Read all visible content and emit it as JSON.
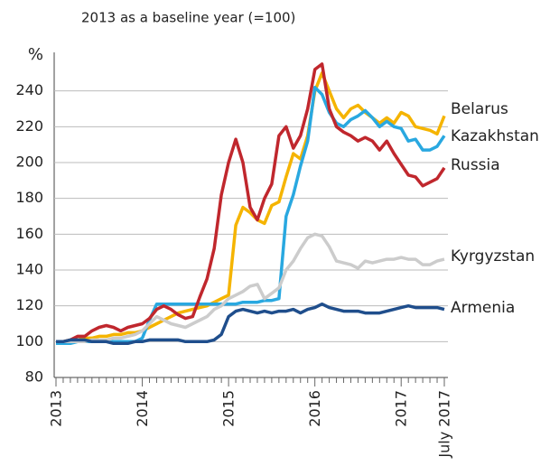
{
  "chart_data": {
    "type": "line",
    "subtitle": "2013 as a baseline year (=100)",
    "y_label": "%",
    "categories": [
      "2013",
      null,
      null,
      null,
      null,
      null,
      null,
      null,
      null,
      null,
      null,
      null,
      "2014",
      null,
      null,
      null,
      null,
      null,
      null,
      null,
      null,
      null,
      null,
      null,
      "2015",
      null,
      null,
      null,
      null,
      null,
      null,
      null,
      null,
      null,
      null,
      null,
      "2016",
      null,
      null,
      null,
      null,
      null,
      null,
      null,
      null,
      null,
      null,
      null,
      "2017",
      null,
      null,
      null,
      null,
      null,
      "July 2017"
    ],
    "ylim": [
      80,
      260
    ],
    "yticks": [
      80,
      100,
      120,
      140,
      160,
      180,
      200,
      220,
      240
    ],
    "grid": true,
    "series": [
      {
        "name": "Belarus",
        "color": "#f5b400",
        "values": [
          100,
          100,
          101,
          101,
          102,
          102,
          103,
          103,
          104,
          104,
          105,
          105,
          106,
          108,
          110,
          112,
          114,
          116,
          117,
          118,
          119,
          120,
          122,
          124,
          126,
          165,
          175,
          172,
          168,
          166,
          176,
          178,
          192,
          205,
          202,
          215,
          240,
          250,
          240,
          230,
          225,
          230,
          232,
          228,
          225,
          222,
          225,
          222,
          228,
          226,
          220,
          219,
          218,
          216,
          226
        ]
      },
      {
        "name": "Kazakhstan",
        "color": "#29a8e0",
        "values": [
          99,
          99,
          99,
          100,
          100,
          100,
          100,
          100,
          100,
          100,
          100,
          100,
          102,
          112,
          121,
          121,
          121,
          121,
          121,
          121,
          121,
          121,
          121,
          121,
          121,
          121,
          122,
          122,
          122,
          123,
          123,
          124,
          170,
          182,
          198,
          212,
          242,
          238,
          228,
          222,
          220,
          224,
          226,
          229,
          225,
          220,
          223,
          220,
          219,
          212,
          213,
          207,
          207,
          209,
          215
        ]
      },
      {
        "name": "Russia",
        "color": "#c0272d",
        "values": [
          100,
          100,
          101,
          103,
          103,
          106,
          108,
          109,
          108,
          106,
          108,
          109,
          110,
          113,
          118,
          120,
          118,
          115,
          113,
          114,
          125,
          135,
          152,
          182,
          200,
          213,
          200,
          175,
          168,
          180,
          188,
          215,
          220,
          208,
          215,
          230,
          252,
          255,
          230,
          220,
          217,
          215,
          212,
          214,
          212,
          207,
          212,
          205,
          199,
          193,
          192,
          187,
          189,
          191,
          197
        ]
      },
      {
        "name": "Kyrgyzstan",
        "color": "#cccccc",
        "values": [
          100,
          100,
          100,
          100,
          100,
          101,
          101,
          101,
          102,
          102,
          103,
          104,
          106,
          110,
          114,
          112,
          110,
          109,
          108,
          110,
          112,
          114,
          118,
          120,
          124,
          126,
          128,
          131,
          132,
          124,
          127,
          130,
          140,
          145,
          152,
          158,
          160,
          159,
          153,
          145,
          144,
          143,
          141,
          145,
          144,
          145,
          146,
          146,
          147,
          146,
          146,
          143,
          143,
          145,
          146
        ]
      },
      {
        "name": "Armenia",
        "color": "#1f4e8c",
        "values": [
          100,
          100,
          101,
          101,
          101,
          100,
          100,
          100,
          99,
          99,
          99,
          100,
          100,
          101,
          101,
          101,
          101,
          101,
          100,
          100,
          100,
          100,
          101,
          104,
          114,
          117,
          118,
          117,
          116,
          117,
          116,
          117,
          117,
          118,
          116,
          118,
          119,
          121,
          119,
          118,
          117,
          117,
          117,
          116,
          116,
          116,
          117,
          118,
          119,
          120,
          119,
          119,
          119,
          119,
          118
        ]
      }
    ]
  }
}
